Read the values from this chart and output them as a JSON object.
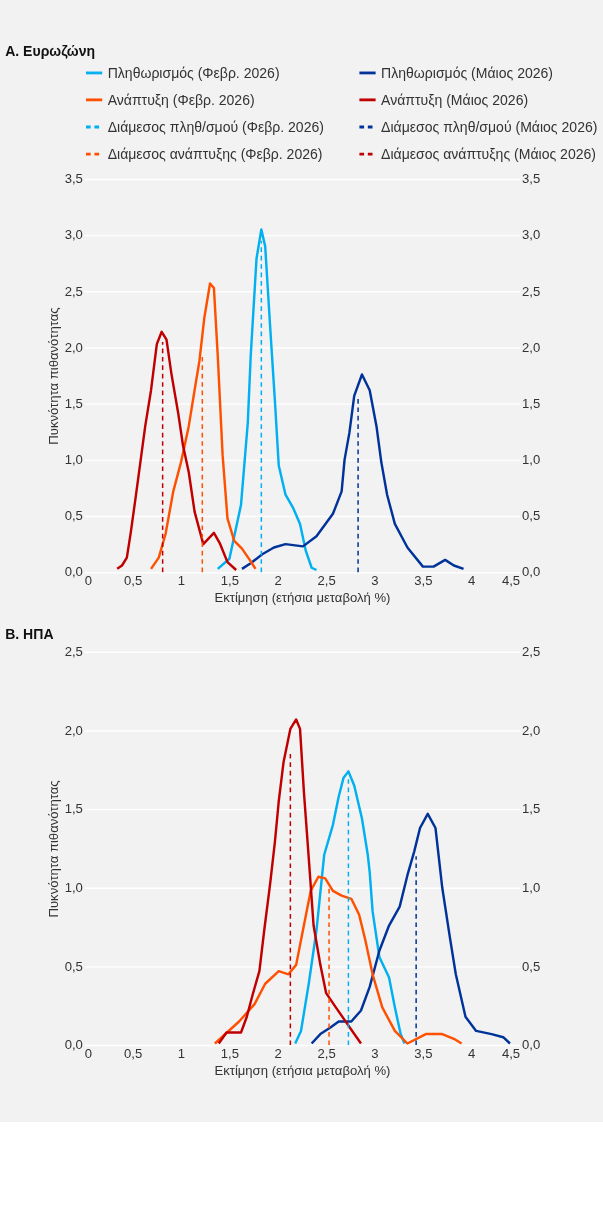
{
  "chart_data": [
    {
      "type": "line",
      "title": "Α. Ευρωζώνη",
      "xlabel": "Εκτίμηση (ετήσια μεταβολή %)",
      "ylabel": "Πυκνότητα πιθανότητας",
      "legend": "top",
      "grid": "y",
      "xlim": [
        0,
        4.5
      ],
      "xticks": [
        0,
        {
          "value": 0.5,
          "label": "0,5"
        },
        1,
        {
          "value": 1.5,
          "label": "1,5"
        },
        2,
        {
          "value": 2.5,
          "label": "2,5"
        },
        3,
        {
          "value": 3.5,
          "label": "3,5"
        },
        4,
        {
          "value": 4.5,
          "label": "4,5"
        }
      ],
      "ylim": [
        0,
        3.5
      ],
      "yticks": [
        {
          "value": 0,
          "label": "0,0"
        },
        {
          "value": 0.5,
          "label": "0,5"
        },
        {
          "value": 1,
          "label": "1,0"
        },
        {
          "value": 1.5,
          "label": "1,5"
        },
        {
          "value": 2,
          "label": "2,0"
        },
        {
          "value": 2.5,
          "label": "2,5"
        },
        {
          "value": 3,
          "label": "3,0"
        },
        {
          "value": 3.5,
          "label": "3,5"
        }
      ],
      "y2lim": [
        0,
        3.5
      ],
      "y2ticks": [
        {
          "value": 0,
          "label": "0,0"
        },
        {
          "value": 0.5,
          "label": "0,5"
        },
        {
          "value": 1,
          "label": "1,0"
        },
        {
          "value": 1.5,
          "label": "1,5"
        },
        {
          "value": 2,
          "label": "2,0"
        },
        {
          "value": 2.5,
          "label": "2,5"
        },
        {
          "value": 3,
          "label": "3,0"
        },
        {
          "value": 3.5,
          "label": "3,5"
        }
      ],
      "series": [
        {
          "name": "Πληθωρισμός (Φεβρ. 2026)",
          "color": "#00b0f0",
          "type": "line",
          "line_style": "solid",
          "x": [
            1.38,
            1.5,
            1.62,
            1.69,
            1.72,
            1.78,
            1.83,
            1.87,
            1.92,
            1.97,
            2.01,
            2.08,
            2.16,
            2.23,
            2.29,
            2.35,
            2.4
          ],
          "values": [
            0.03,
            0.12,
            0.6,
            1.33,
            1.92,
            2.79,
            3.05,
            2.9,
            2.2,
            1.53,
            0.95,
            0.69,
            0.57,
            0.43,
            0.19,
            0.04,
            0.02
          ]
        },
        {
          "name": "Πληθωρισμός (Μάιος 2026)",
          "color": "#003399",
          "type": "line",
          "line_style": "solid",
          "x": [
            1.63,
            1.72,
            1.84,
            1.96,
            2.08,
            2.26,
            2.4,
            2.57,
            2.66,
            2.69,
            2.74,
            2.79,
            2.87,
            2.95,
            3.02,
            3.07,
            3.13,
            3.21,
            3.34,
            3.5,
            3.61,
            3.73,
            3.82,
            3.92
          ],
          "values": [
            0.03,
            0.08,
            0.16,
            0.22,
            0.25,
            0.23,
            0.32,
            0.52,
            0.72,
            1.0,
            1.24,
            1.57,
            1.76,
            1.62,
            1.3,
            0.98,
            0.69,
            0.43,
            0.22,
            0.05,
            0.05,
            0.11,
            0.06,
            0.03
          ]
        },
        {
          "name": "Ανάπτυξη (Φεβρ. 2026)",
          "color": "#ff5000",
          "type": "line",
          "line_style": "solid",
          "x": [
            0.69,
            0.77,
            0.84,
            0.92,
            1.0,
            1.08,
            1.14,
            1.19,
            1.24,
            1.3,
            1.34,
            1.38,
            1.43,
            1.48,
            1.55,
            1.63,
            1.71,
            1.77
          ],
          "values": [
            0.03,
            0.13,
            0.34,
            0.72,
            0.98,
            1.3,
            1.62,
            1.88,
            2.26,
            2.57,
            2.53,
            1.92,
            1.04,
            0.48,
            0.28,
            0.21,
            0.11,
            0.03
          ]
        },
        {
          "name": "Ανάπτυξη (Μάιος 2026)",
          "color": "#c00000",
          "type": "line",
          "line_style": "solid",
          "x": [
            0.34,
            0.39,
            0.44,
            0.48,
            0.53,
            0.58,
            0.63,
            0.69,
            0.75,
            0.8,
            0.85,
            0.9,
            0.97,
            1.02,
            1.08,
            1.14,
            1.23,
            1.34,
            1.4,
            1.48,
            1.57
          ],
          "values": [
            0.03,
            0.06,
            0.13,
            0.35,
            0.66,
            0.98,
            1.3,
            1.62,
            2.03,
            2.14,
            2.07,
            1.77,
            1.42,
            1.13,
            0.89,
            0.54,
            0.25,
            0.35,
            0.26,
            0.09,
            0.02
          ]
        },
        {
          "name": "Διάμεσος πληθ/σμού (Φεβρ. 2026)",
          "color": "#00b0f0",
          "type": "line",
          "line_style": "dashed",
          "x": [
            1.83,
            1.83
          ],
          "values": [
            0,
            2.95
          ]
        },
        {
          "name": "Διάμεσος πληθ/σμού (Μάιος 2026)",
          "color": "#003399",
          "type": "line",
          "line_style": "dashed",
          "x": [
            2.83,
            2.83
          ],
          "values": [
            0,
            1.57
          ]
        },
        {
          "name": "Διάμεσος ανάπτυξης (Φεβρ. 2026)",
          "color": "#ff5000",
          "type": "line",
          "line_style": "dashed",
          "x": [
            1.22,
            1.22
          ],
          "values": [
            0,
            1.94
          ]
        },
        {
          "name": "Διάμεσος ανάπτυξης (Μάιος 2026)",
          "color": "#c00000",
          "type": "line",
          "line_style": "dashed",
          "x": [
            0.81,
            0.81
          ],
          "values": [
            0,
            2.05
          ]
        }
      ]
    },
    {
      "type": "line",
      "title": "Β. ΗΠΑ",
      "xlabel": "Εκτίμηση (ετήσια μεταβολή %)",
      "ylabel": "Πυκνότητα πιθανότητας",
      "legend": false,
      "grid": "y",
      "xlim": [
        0,
        4.5
      ],
      "xticks": [
        0,
        {
          "value": 0.5,
          "label": "0,5"
        },
        1,
        {
          "value": 1.5,
          "label": "1,5"
        },
        2,
        {
          "value": 2.5,
          "label": "2,5"
        },
        3,
        {
          "value": 3.5,
          "label": "3,5"
        },
        4,
        {
          "value": 4.5,
          "label": "4,5"
        }
      ],
      "ylim": [
        0,
        2.5
      ],
      "yticks": [
        {
          "value": 0,
          "label": "0,0"
        },
        {
          "value": 0.5,
          "label": "0,5"
        },
        {
          "value": 1,
          "label": "1,0"
        },
        {
          "value": 1.5,
          "label": "1,5"
        },
        {
          "value": 2,
          "label": "2,0"
        },
        {
          "value": 2.5,
          "label": "2,5"
        }
      ],
      "y2lim": [
        0,
        2.5
      ],
      "y2ticks": [
        {
          "value": 0,
          "label": "0,0"
        },
        {
          "value": 0.5,
          "label": "0,5"
        },
        {
          "value": 1,
          "label": "1,0"
        },
        {
          "value": 1.5,
          "label": "1,5"
        },
        {
          "value": 2,
          "label": "2,0"
        },
        {
          "value": 2.5,
          "label": "2,5"
        }
      ],
      "series": [
        {
          "name": "Πληθωρισμός (Φεβρ. 2026)",
          "color": "#00b0f0",
          "type": "line",
          "line_style": "solid",
          "x": [
            2.18,
            2.24,
            2.32,
            2.4,
            2.48,
            2.57,
            2.63,
            2.68,
            2.73,
            2.79,
            2.87,
            2.93,
            2.95,
            2.98,
            3.05,
            3.15,
            3.21,
            3.27,
            3.31
          ],
          "values": [
            0.01,
            0.09,
            0.39,
            0.73,
            1.21,
            1.4,
            1.58,
            1.7,
            1.74,
            1.65,
            1.44,
            1.21,
            1.1,
            0.85,
            0.56,
            0.43,
            0.24,
            0.07,
            0.01
          ]
        },
        {
          "name": "Πληθωρισμός (Μάιος 2026)",
          "color": "#003399",
          "type": "line",
          "line_style": "solid",
          "x": [
            2.35,
            2.44,
            2.54,
            2.63,
            2.76,
            2.86,
            2.95,
            3.05,
            3.15,
            3.26,
            3.34,
            3.41,
            3.47,
            3.55,
            3.63,
            3.7,
            3.78,
            3.84,
            3.94,
            4.05,
            4.21,
            4.33,
            4.4
          ],
          "values": [
            0.01,
            0.07,
            0.11,
            0.15,
            0.15,
            0.22,
            0.37,
            0.6,
            0.76,
            0.88,
            1.08,
            1.23,
            1.38,
            1.47,
            1.38,
            1.0,
            0.68,
            0.45,
            0.18,
            0.09,
            0.07,
            0.05,
            0.01
          ]
        },
        {
          "name": "Ανάπτυξη (Φεβρ. 2026)",
          "color": "#ff5000",
          "type": "line",
          "line_style": "solid",
          "x": [
            1.35,
            1.6,
            1.76,
            1.87,
            2.01,
            2.11,
            2.19,
            2.26,
            2.34,
            2.42,
            2.49,
            2.57,
            2.66,
            2.76,
            2.84,
            2.9,
            2.98,
            3.08,
            3.21,
            3.34,
            3.53,
            3.7,
            3.82,
            3.9
          ],
          "values": [
            0.01,
            0.15,
            0.26,
            0.39,
            0.47,
            0.45,
            0.51,
            0.73,
            0.98,
            1.07,
            1.06,
            0.98,
            0.95,
            0.93,
            0.83,
            0.68,
            0.45,
            0.24,
            0.09,
            0.01,
            0.07,
            0.07,
            0.04,
            0.01
          ]
        },
        {
          "name": "Ανάπτυξη (Μάιος 2026)",
          "color": "#c00000",
          "type": "line",
          "line_style": "solid",
          "x": [
            1.39,
            1.47,
            1.62,
            1.68,
            1.74,
            1.81,
            1.86,
            1.92,
            1.97,
            2.01,
            2.06,
            2.13,
            2.19,
            2.23,
            2.27,
            2.32,
            2.37,
            2.44,
            2.5,
            2.6,
            2.69,
            2.78,
            2.86
          ],
          "values": [
            0.01,
            0.08,
            0.08,
            0.18,
            0.32,
            0.47,
            0.73,
            1.02,
            1.29,
            1.55,
            1.8,
            2.01,
            2.07,
            2.01,
            1.61,
            1.19,
            0.76,
            0.51,
            0.33,
            0.24,
            0.16,
            0.08,
            0.01
          ]
        },
        {
          "name": "Διάμεσος πληθ/σμού (Φεβρ. 2026)",
          "color": "#00b0f0",
          "type": "line",
          "line_style": "dashed",
          "x": [
            2.73,
            2.73
          ],
          "values": [
            0,
            1.69
          ]
        },
        {
          "name": "Διάμεσος πληθ/σμού (Μάιος 2026)",
          "color": "#003399",
          "type": "line",
          "line_style": "dashed",
          "x": [
            3.43,
            3.43
          ],
          "values": [
            0,
            1.2
          ]
        },
        {
          "name": "Διάμεσος ανάπτυξης (Φεβρ. 2026)",
          "color": "#ff5000",
          "type": "line",
          "line_style": "dashed",
          "x": [
            2.53,
            2.53
          ],
          "values": [
            0,
            1.0
          ]
        },
        {
          "name": "Διάμεσος ανάπτυξης (Μάιος 2026)",
          "color": "#c00000",
          "type": "line",
          "line_style": "dashed",
          "x": [
            2.13,
            2.13
          ],
          "values": [
            0,
            1.86
          ]
        }
      ]
    }
  ]
}
